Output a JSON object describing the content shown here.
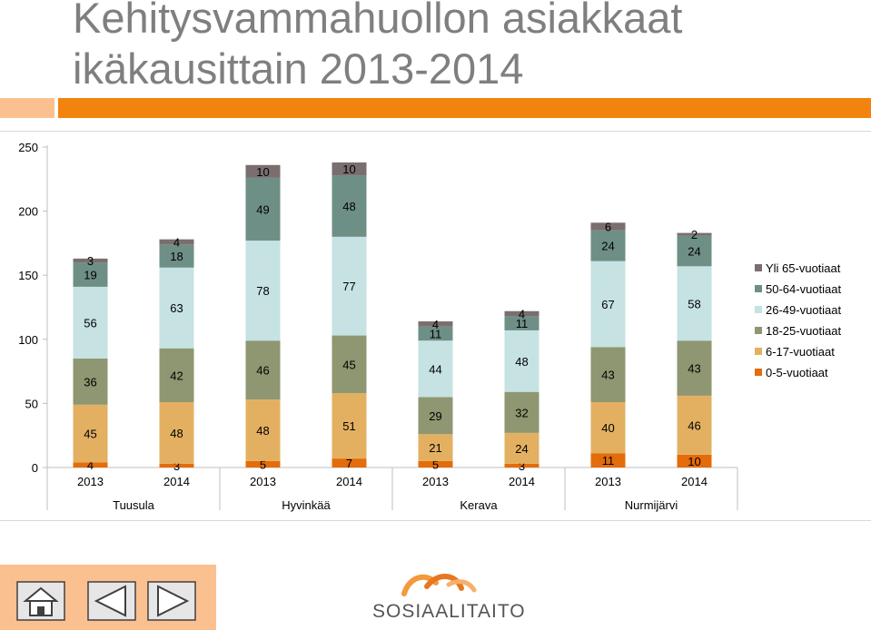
{
  "title": "Kehitysvammahuollon asiakkaat ikäkausittain 2013-2014",
  "colors": {
    "orange_bar": "#f2830f",
    "light_orange_bar": "#fac090",
    "nav_panel": "#fac090"
  },
  "nav": {
    "home_icon": "home-icon",
    "prev_icon": "triangle-left-icon",
    "next_icon": "triangle-right-icon"
  },
  "logo": {
    "text": "SOSIAALITAITO"
  },
  "chart_data": {
    "type": "bar",
    "stacked": true,
    "categories": [
      "2013",
      "2014",
      "2013",
      "2014",
      "2013",
      "2014",
      "2013",
      "2014"
    ],
    "groups": [
      "Tuusula",
      "Hyvinkää",
      "Kerava",
      "Nurmijärvi"
    ],
    "series": [
      {
        "name": "0-5-vuotiaat",
        "color": "#e46c0a",
        "values": [
          4,
          3,
          5,
          7,
          5,
          3,
          11,
          10
        ]
      },
      {
        "name": "6-17-vuotiaat",
        "color": "#e3b062",
        "values": [
          45,
          48,
          48,
          51,
          21,
          24,
          40,
          46
        ]
      },
      {
        "name": "18-25-vuotiaat",
        "color": "#8e9771",
        "values": [
          36,
          42,
          46,
          45,
          29,
          32,
          43,
          43
        ]
      },
      {
        "name": "26-49-vuotiaat",
        "color": "#c6e2e3",
        "values": [
          56,
          63,
          78,
          77,
          44,
          48,
          67,
          58
        ]
      },
      {
        "name": "50-64-vuotiaat",
        "color": "#6e8f86",
        "values": [
          19,
          18,
          49,
          48,
          11,
          11,
          24,
          24
        ]
      },
      {
        "name": "Yli 65-vuotiaat",
        "color": "#7b6e6e",
        "values": [
          3,
          4,
          10,
          10,
          4,
          4,
          6,
          2
        ]
      }
    ],
    "ylim": [
      0,
      250
    ],
    "yticks": [
      0,
      50,
      100,
      150,
      200,
      250
    ],
    "legend": "right",
    "grid": false
  }
}
